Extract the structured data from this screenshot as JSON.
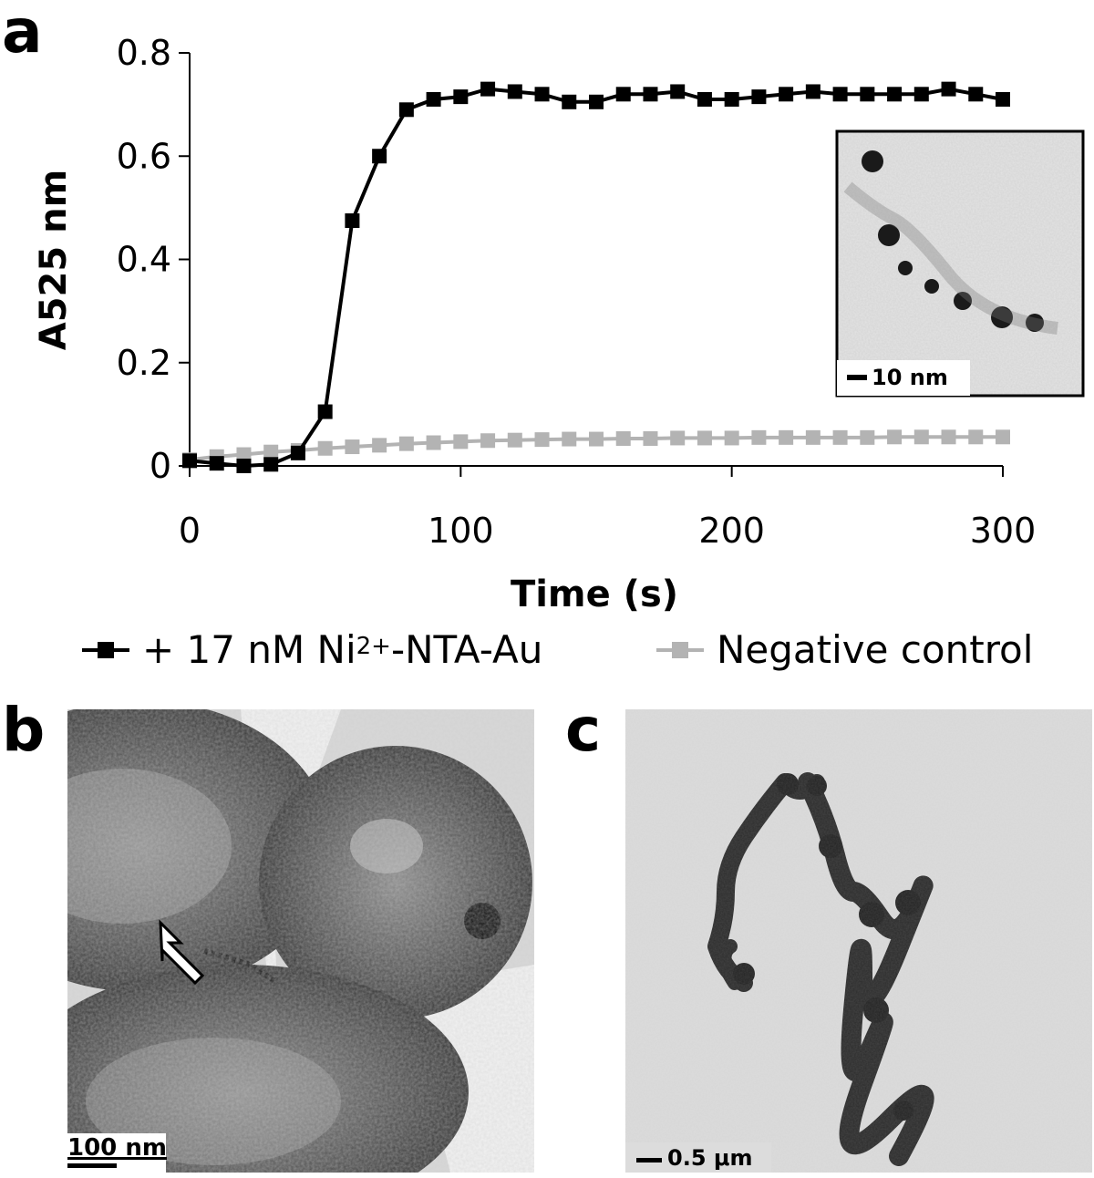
{
  "panels": {
    "a": "a",
    "b": "b",
    "c": "c"
  },
  "chart_data": {
    "type": "line",
    "title": "",
    "xlabel": "Time (s)",
    "ylabel": "A525 nm",
    "xlim": [
      0,
      300
    ],
    "ylim": [
      0,
      0.8
    ],
    "xticks": [
      "0",
      "100",
      "200",
      "300"
    ],
    "yticks": [
      "0",
      "0.2",
      "0.4",
      "0.6",
      "0.8"
    ],
    "grid": false,
    "legend_placement": "bottom",
    "series": [
      {
        "name_prefix": "+ 17 nM Ni",
        "name_sup": "2+",
        "name_suffix": "-NTA-Au",
        "color": "#000000",
        "x": [
          0,
          10,
          20,
          30,
          40,
          50,
          60,
          70,
          80,
          90,
          100,
          110,
          120,
          130,
          140,
          150,
          160,
          170,
          180,
          190,
          200,
          210,
          220,
          230,
          240,
          250,
          260,
          270,
          280,
          290,
          300
        ],
        "y": [
          0.01,
          0.005,
          0.0,
          0.003,
          0.025,
          0.105,
          0.475,
          0.6,
          0.69,
          0.71,
          0.715,
          0.73,
          0.725,
          0.72,
          0.705,
          0.705,
          0.72,
          0.72,
          0.725,
          0.71,
          0.71,
          0.715,
          0.72,
          0.725,
          0.72,
          0.72,
          0.72,
          0.72,
          0.73,
          0.72,
          0.71
        ]
      },
      {
        "name": "Negative control",
        "color": "#b3b3b3",
        "x": [
          0,
          10,
          20,
          30,
          40,
          50,
          60,
          70,
          80,
          90,
          100,
          110,
          120,
          130,
          140,
          150,
          160,
          170,
          180,
          190,
          200,
          210,
          220,
          230,
          240,
          250,
          260,
          270,
          280,
          290,
          300
        ],
        "y": [
          0.012,
          0.018,
          0.022,
          0.027,
          0.03,
          0.034,
          0.037,
          0.04,
          0.043,
          0.045,
          0.047,
          0.049,
          0.05,
          0.051,
          0.052,
          0.052,
          0.053,
          0.053,
          0.054,
          0.054,
          0.054,
          0.055,
          0.055,
          0.055,
          0.055,
          0.055,
          0.056,
          0.056,
          0.056,
          0.056,
          0.056
        ]
      }
    ]
  },
  "inset": {
    "scale_label": "10 nm"
  },
  "panel_b": {
    "scale_label": "100 nm"
  },
  "panel_c": {
    "scale_label": "0.5 μm"
  }
}
